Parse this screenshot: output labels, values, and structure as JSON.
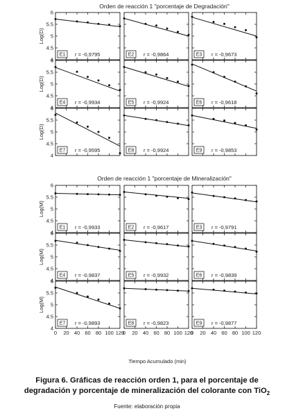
{
  "figure": {
    "caption_line1": "Figura 6. Gráficas de reacción orden 1, para el porcentaje de",
    "caption_line2": "degradación y porcentaje de mineralización del colorante con TiO",
    "caption_sub": "2",
    "source": "Fuente: elaboración propia"
  },
  "chart_data": [
    {
      "type": "scatter",
      "title": "Orden de reacción 1 \"porcentaje de Degradación\"",
      "ylabel": "Log(D)",
      "xlabel": "",
      "xlim": [
        0,
        120
      ],
      "ylim": [
        4,
        6
      ],
      "xticks": [],
      "yticks": [
        "4",
        "4.5",
        "5",
        "5.5",
        "6"
      ],
      "panels": [
        {
          "label": "E1",
          "r": "r = -0,9795",
          "x": [
            0,
            40,
            60,
            80,
            100,
            120
          ],
          "y": [
            5.72,
            5.62,
            5.58,
            5.52,
            5.48,
            5.42
          ],
          "fit": [
            5.72,
            5.4
          ]
        },
        {
          "label": "E2",
          "r": "r = -0,9864",
          "x": [
            0,
            40,
            60,
            80,
            100,
            120
          ],
          "y": [
            5.75,
            5.52,
            5.45,
            5.32,
            5.18,
            5.05
          ],
          "fit": [
            5.75,
            5.0
          ]
        },
        {
          "label": "E3",
          "r": "r = -0,9673",
          "x": [
            0,
            40,
            60,
            80,
            100,
            120
          ],
          "y": [
            5.82,
            5.6,
            5.52,
            5.38,
            5.25,
            4.95
          ],
          "fit": [
            5.8,
            5.0
          ]
        },
        {
          "label": "E4",
          "r": "r = -0,9934",
          "x": [
            0,
            40,
            60,
            80,
            100,
            120
          ],
          "y": [
            5.72,
            5.52,
            5.3,
            5.15,
            4.95,
            4.75
          ],
          "fit": [
            5.7,
            4.7
          ]
        },
        {
          "label": "E5",
          "r": "r = -0,9924",
          "x": [
            0,
            40,
            60,
            80,
            100,
            120
          ],
          "y": [
            5.72,
            5.5,
            5.4,
            5.25,
            5.1,
            4.92
          ],
          "fit": [
            5.72,
            4.9
          ]
        },
        {
          "label": "E6",
          "r": "r = -0,9618",
          "x": [
            0,
            40,
            60,
            80,
            100,
            120
          ],
          "y": [
            5.82,
            5.5,
            5.3,
            5.1,
            4.9,
            4.6
          ],
          "fit": [
            5.85,
            4.7
          ]
        },
        {
          "label": "E7",
          "r": "r = -0,9595",
          "x": [
            0,
            40,
            60,
            80,
            100,
            120
          ],
          "y": [
            5.72,
            5.4,
            5.22,
            5.0,
            4.75,
            4.1
          ],
          "fit": [
            5.8,
            4.4
          ]
        },
        {
          "label": "E8",
          "r": "r = -0,9924",
          "x": [
            0,
            40,
            60,
            80,
            100,
            120
          ],
          "y": [
            5.7,
            5.55,
            5.5,
            5.42,
            5.35,
            5.28
          ],
          "fit": [
            5.7,
            5.27
          ]
        },
        {
          "label": "E9",
          "r": "r = -0,9853",
          "x": [
            0,
            40,
            60,
            80,
            100,
            120
          ],
          "y": [
            5.7,
            5.55,
            5.48,
            5.38,
            5.28,
            5.1
          ],
          "fit": [
            5.7,
            5.15
          ]
        }
      ]
    },
    {
      "type": "scatter",
      "title": "Orden de reacción 1 \"porcentaje de Mineralización\"",
      "ylabel": "Log(M)",
      "xlabel": "Tiempo Acumulado (min)",
      "xlim": [
        0,
        120
      ],
      "ylim": [
        4,
        6
      ],
      "xticks": [
        "0",
        "20",
        "40",
        "60",
        "80",
        "100",
        "120"
      ],
      "yticks": [
        "4",
        "4.5",
        "5",
        "5.5",
        "6"
      ],
      "panels": [
        {
          "label": "E1",
          "r": "r = -0,9933",
          "x": [
            0,
            40,
            60,
            80,
            100,
            120
          ],
          "y": [
            5.66,
            5.64,
            5.63,
            5.62,
            5.61,
            5.6
          ],
          "fit": [
            5.66,
            5.6
          ]
        },
        {
          "label": "E2",
          "r": "r = -0,9617",
          "x": [
            0,
            40,
            60,
            80,
            100,
            120
          ],
          "y": [
            5.72,
            5.62,
            5.56,
            5.52,
            5.46,
            5.42
          ],
          "fit": [
            5.72,
            5.45
          ]
        },
        {
          "label": "E3",
          "r": "r = -0,9791",
          "x": [
            0,
            40,
            60,
            80,
            100,
            120
          ],
          "y": [
            5.7,
            5.55,
            5.5,
            5.45,
            5.38,
            5.32
          ],
          "fit": [
            5.68,
            5.3
          ]
        },
        {
          "label": "E4",
          "r": "r = -0,9837",
          "x": [
            0,
            40,
            60,
            80,
            100,
            120
          ],
          "y": [
            5.68,
            5.6,
            5.5,
            5.42,
            5.35,
            5.25
          ],
          "fit": [
            5.7,
            5.28
          ]
        },
        {
          "label": "E5",
          "r": "r = -0,9932",
          "x": [
            0,
            40,
            60,
            80,
            100,
            120
          ],
          "y": [
            5.72,
            5.62,
            5.58,
            5.54,
            5.48,
            5.44
          ],
          "fit": [
            5.72,
            5.43
          ]
        },
        {
          "label": "E6",
          "r": "r = -0,9839",
          "x": [
            0,
            40,
            60,
            80,
            100,
            120
          ],
          "y": [
            5.68,
            5.55,
            5.48,
            5.42,
            5.35,
            5.22
          ],
          "fit": [
            5.68,
            5.25
          ]
        },
        {
          "label": "E7",
          "r": "r = -0,9893",
          "x": [
            0,
            40,
            60,
            80,
            100,
            120
          ],
          "y": [
            5.72,
            5.5,
            5.35,
            5.22,
            5.05,
            4.85
          ],
          "fit": [
            5.75,
            4.85
          ]
        },
        {
          "label": "E8",
          "r": "r = -0,9823",
          "x": [
            0,
            40,
            60,
            80,
            100,
            120
          ],
          "y": [
            5.7,
            5.66,
            5.64,
            5.62,
            5.6,
            5.58
          ],
          "fit": [
            5.7,
            5.58
          ]
        },
        {
          "label": "E9",
          "r": "r = -0,9877",
          "x": [
            0,
            40,
            60,
            80,
            100,
            120
          ],
          "y": [
            5.7,
            5.64,
            5.6,
            5.56,
            5.52,
            5.48
          ],
          "fit": [
            5.7,
            5.46
          ]
        }
      ]
    }
  ]
}
